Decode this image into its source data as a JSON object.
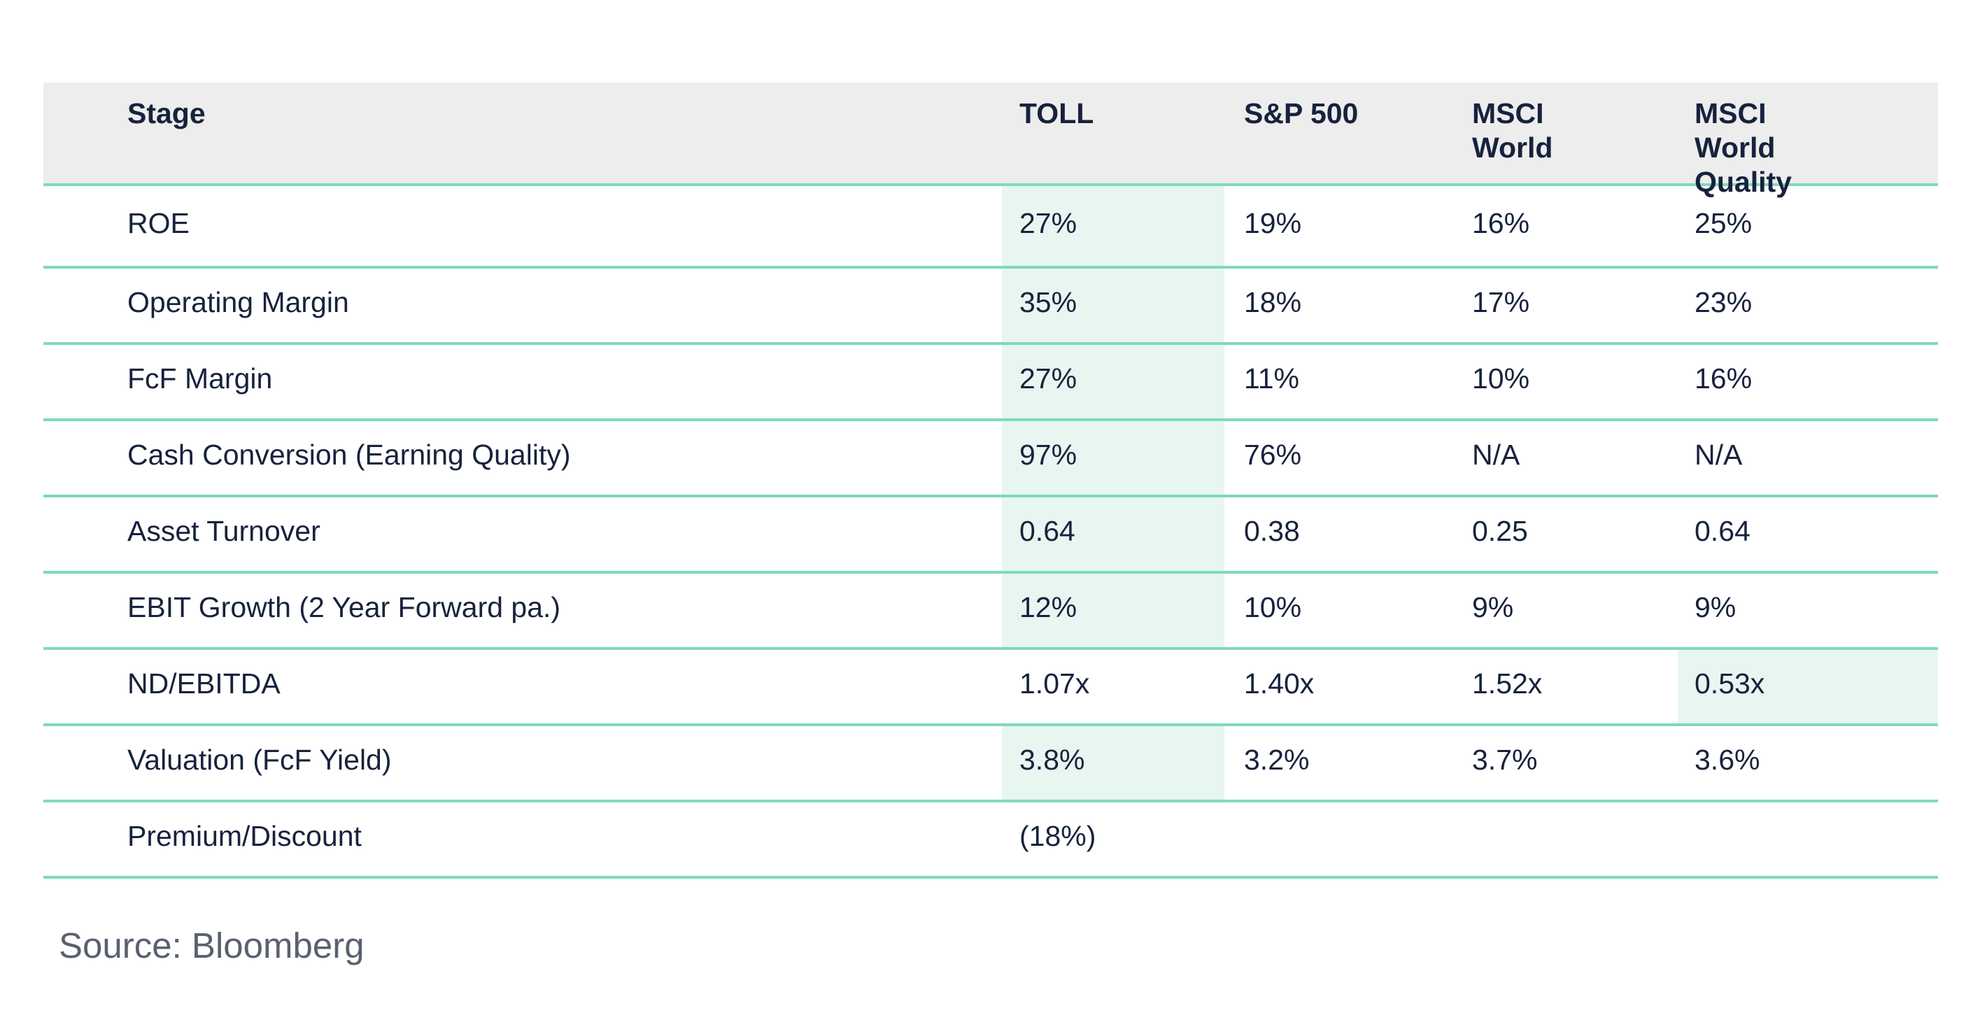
{
  "table": {
    "headers": {
      "stage": "Stage",
      "toll": "TOLL",
      "sp500": "S&P 500",
      "msci_world": "MSCI World",
      "msci_world_quality": "MSCI World Quality"
    },
    "rows": [
      {
        "stage": "ROE",
        "toll": "27%",
        "sp500": "19%",
        "msci_world": "16%",
        "msci_world_quality": "25%"
      },
      {
        "stage": "Operating Margin",
        "toll": "35%",
        "sp500": "18%",
        "msci_world": "17%",
        "msci_world_quality": "23%"
      },
      {
        "stage": "FcF Margin",
        "toll": "27%",
        "sp500": "11%",
        "msci_world": "10%",
        "msci_world_quality": "16%"
      },
      {
        "stage": "Cash Conversion (Earning Quality)",
        "toll": "97%",
        "sp500": "76%",
        "msci_world": "N/A",
        "msci_world_quality": "N/A"
      },
      {
        "stage": "Asset Turnover",
        "toll": "0.64",
        "sp500": "0.38",
        "msci_world": "0.25",
        "msci_world_quality": "0.64"
      },
      {
        "stage": "EBIT Growth (2 Year Forward pa.)",
        "toll": "12%",
        "sp500": "10%",
        "msci_world": "9%",
        "msci_world_quality": "9%"
      },
      {
        "stage": "ND/EBITDA",
        "toll": "1.07x",
        "sp500": "1.40x",
        "msci_world": "1.52x",
        "msci_world_quality": "0.53x"
      },
      {
        "stage": "Valuation (FcF Yield)",
        "toll": "3.8%",
        "sp500": "3.2%",
        "msci_world": "3.7%",
        "msci_world_quality": "3.6%"
      },
      {
        "stage": "Premium/Discount",
        "toll": "(18%)",
        "sp500": "",
        "msci_world": "",
        "msci_world_quality": ""
      }
    ]
  },
  "source": "Source: Bloomberg",
  "colors": {
    "header_bg": "#ededed",
    "divider": "#7fd8c3",
    "highlight": "#e7f6f1",
    "text": "#17223d"
  }
}
